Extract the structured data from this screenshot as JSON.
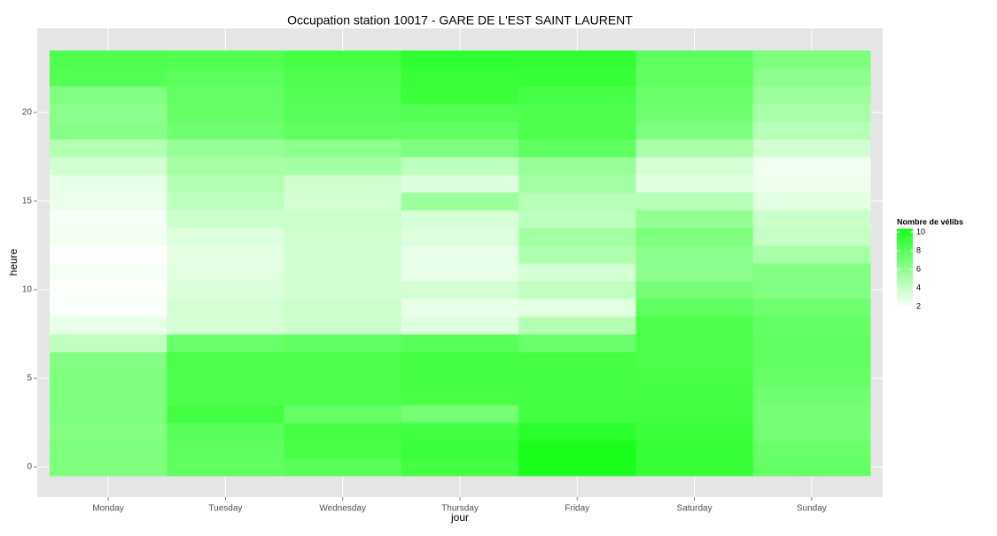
{
  "chart_data": {
    "type": "heatmap",
    "title": "Occupation station 10017 - GARE DE L'EST SAINT LAURENT",
    "x_label": "jour",
    "y_label": "heure",
    "categories": [
      "Monday",
      "Tuesday",
      "Wednesday",
      "Thursday",
      "Friday",
      "Saturday",
      "Sunday"
    ],
    "y": [
      0,
      1,
      2,
      3,
      4,
      5,
      6,
      7,
      8,
      9,
      10,
      11,
      12,
      13,
      14,
      15,
      16,
      17,
      18,
      19,
      20,
      21,
      22,
      23
    ],
    "values": [
      [
        6.5,
        6.5,
        6.3,
        6.5,
        6.5,
        6.5,
        6.3,
        4.2,
        2.8,
        2.2,
        2.1,
        2.3,
        2,
        2.4,
        2.3,
        2.7,
        2.8,
        3.6,
        4.6,
        6.2,
        6,
        6.4,
        8,
        8.2
      ],
      [
        7.6,
        7.6,
        7.8,
        8.6,
        8.2,
        8.2,
        8.3,
        7.2,
        3.4,
        3.5,
        3.3,
        3.0,
        2.9,
        3.2,
        3.8,
        4.3,
        4.6,
        5.1,
        5.6,
        7.0,
        7.3,
        7.4,
        7.7,
        8.1
      ],
      [
        7.8,
        8.4,
        8.5,
        7.4,
        8.2,
        8.3,
        8.2,
        7.5,
        3.8,
        3.8,
        3.6,
        3.6,
        3.6,
        3.7,
        3.8,
        3.5,
        3.7,
        5.2,
        6.0,
        7.6,
        7.8,
        8.0,
        8.2,
        8.5
      ],
      [
        8.6,
        8.8,
        8.6,
        6.8,
        8.4,
        8.5,
        8.5,
        7.8,
        3.2,
        2.8,
        3.5,
        2.8,
        2.8,
        3.2,
        3.4,
        5.5,
        3.2,
        4.3,
        6.5,
        7.5,
        8.0,
        8.8,
        8.9,
        9.3
      ],
      [
        10,
        10,
        9.4,
        8.6,
        8.5,
        8.5,
        8.5,
        7.2,
        4.6,
        3,
        4.2,
        3.5,
        4.8,
        5.2,
        4.3,
        4.5,
        5.2,
        5.6,
        7.6,
        8.2,
        8.2,
        8.4,
        9.0,
        9.2
      ],
      [
        9.0,
        9.0,
        8.8,
        8.6,
        8.5,
        8.4,
        8.3,
        8.3,
        8.2,
        7.6,
        6.8,
        6.0,
        6.0,
        6.5,
        5.8,
        4.5,
        3.0,
        3.5,
        5.0,
        6.5,
        7.0,
        7.2,
        7.5,
        7.6
      ],
      [
        7.4,
        7.2,
        6.8,
        6.8,
        7.0,
        7.3,
        7.5,
        7.5,
        7.4,
        7.0,
        6.4,
        6.4,
        5.0,
        4.0,
        3.8,
        3.0,
        2.6,
        2.5,
        3.6,
        4.5,
        5.0,
        5.5,
        6.0,
        6.5
      ]
    ],
    "ylim": [
      -1.7,
      24.75
    ],
    "yticks": [
      0,
      5,
      10,
      15,
      20
    ],
    "grid": true,
    "color_low": "#ffffff",
    "color_high": "#1aff1a",
    "legend_title": "Nombre de vélibs",
    "clim": [
      2,
      10
    ],
    "cticks": [
      2,
      4,
      6,
      8,
      10
    ]
  }
}
